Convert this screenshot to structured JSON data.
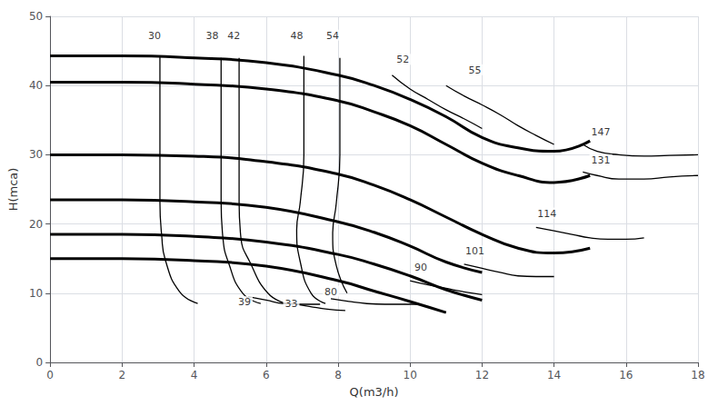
{
  "chart_data": {
    "type": "line",
    "xlabel": "Q(m3/h)",
    "ylabel": "H(mca)",
    "xlim": [
      0,
      18
    ],
    "ylim": [
      0,
      50
    ],
    "xticks": [
      0,
      2,
      4,
      6,
      8,
      10,
      12,
      14,
      16,
      18
    ],
    "yticks": [
      0,
      10,
      20,
      30,
      40,
      50
    ],
    "grid": true,
    "color": "#000000",
    "series": [
      {
        "line_style": "bold",
        "x": [
          0,
          2,
          4,
          6,
          8,
          9,
          10,
          11,
          12,
          13,
          14,
          15
        ],
        "values": [
          44.3,
          44.3,
          44.0,
          43.3,
          41.5,
          40.0,
          38.0,
          35.5,
          32.5,
          31.0,
          30.5,
          32.0
        ]
      },
      {
        "line_style": "bold",
        "x": [
          0,
          2,
          4,
          6,
          8,
          9,
          10,
          11,
          12,
          13,
          14,
          15
        ],
        "values": [
          40.5,
          40.5,
          40.2,
          39.5,
          37.8,
          36.2,
          34.2,
          31.5,
          28.8,
          27.0,
          26.0,
          27.0
        ]
      },
      {
        "line_style": "bold",
        "x": [
          0,
          2,
          4,
          6,
          8,
          9,
          10,
          11,
          12,
          13,
          14,
          15
        ],
        "values": [
          30.0,
          30.0,
          29.8,
          29.0,
          27.2,
          25.6,
          23.5,
          21.0,
          18.5,
          16.5,
          15.8,
          16.5
        ]
      },
      {
        "line_style": "bold",
        "x": [
          0,
          2,
          4,
          6,
          8,
          9,
          10,
          11,
          12
        ],
        "values": [
          23.5,
          23.5,
          23.2,
          22.4,
          20.3,
          18.8,
          16.8,
          14.5,
          13.0
        ]
      },
      {
        "line_style": "bold",
        "x": [
          0,
          2,
          4,
          6,
          8,
          9,
          10,
          11,
          12
        ],
        "values": [
          18.5,
          18.5,
          18.2,
          17.4,
          15.6,
          14.2,
          12.5,
          10.5,
          9.0
        ]
      },
      {
        "line_style": "bold",
        "x": [
          0,
          2,
          4,
          6,
          8,
          9,
          10,
          11
        ],
        "values": [
          15.0,
          15.0,
          14.7,
          13.9,
          11.8,
          10.3,
          8.8,
          7.2
        ]
      },
      {
        "line_style": "thin",
        "x": [
          3.05,
          3.05,
          3.05,
          3.05,
          3.1,
          3.2,
          3.6,
          4.1
        ],
        "values": [
          44.3,
          40.0,
          29.8,
          23.2,
          18.3,
          14.8,
          10.2,
          8.5
        ]
      },
      {
        "line_style": "thin",
        "x": [
          4.75,
          4.75,
          4.75,
          4.8,
          4.95,
          5.35,
          5.85
        ],
        "values": [
          44.0,
          29.8,
          23.2,
          18.0,
          14.5,
          10.0,
          8.5
        ]
      },
      {
        "line_style": "thin",
        "x": [
          5.25,
          5.25,
          5.25,
          5.3,
          5.55,
          6.05,
          6.55
        ],
        "values": [
          44.0,
          29.8,
          23.2,
          18.0,
          14.5,
          10.0,
          8.5
        ]
      },
      {
        "line_style": "thin",
        "x": [
          7.05,
          7.05,
          6.95,
          6.85,
          6.95,
          7.25,
          7.65
        ],
        "values": [
          44.3,
          30.0,
          23.2,
          19.2,
          14.5,
          10.0,
          8.5
        ]
      },
      {
        "line_style": "thin",
        "x": [
          8.05,
          8.05,
          7.95,
          7.85,
          7.95,
          8.25
        ],
        "values": [
          44.0,
          30.0,
          23.0,
          18.5,
          14.0,
          10.0
        ]
      },
      {
        "line_style": "thin",
        "x": [
          9.5,
          10.0,
          10.5,
          11.0,
          11.5,
          12.0
        ],
        "values": [
          41.5,
          39.5,
          38.0,
          36.5,
          35.2,
          33.8
        ]
      },
      {
        "line_style": "thin",
        "x": [
          11.0,
          11.5,
          12.0,
          12.5,
          13.0,
          13.5,
          14.0
        ],
        "values": [
          40.0,
          38.5,
          37.2,
          35.8,
          34.2,
          32.8,
          31.5
        ]
      },
      {
        "line_style": "thin",
        "x": [
          14.8,
          15.2,
          15.8,
          16.5,
          17.2,
          18.0
        ],
        "values": [
          31.5,
          30.5,
          30.0,
          29.8,
          29.9,
          30.0
        ]
      },
      {
        "line_style": "thin",
        "x": [
          14.8,
          15.2,
          15.8,
          16.5,
          17.2,
          18.0
        ],
        "values": [
          27.5,
          27.0,
          26.5,
          26.5,
          26.8,
          27.0
        ]
      },
      {
        "line_style": "thin",
        "x": [
          13.5,
          14.0,
          14.5,
          15.0,
          15.5,
          16.0,
          16.5
        ],
        "values": [
          19.5,
          19.0,
          18.5,
          18.0,
          17.8,
          17.8,
          18.0
        ]
      },
      {
        "line_style": "thin",
        "x": [
          11.5,
          12.0,
          12.5,
          13.0,
          13.5,
          14.0
        ],
        "values": [
          14.2,
          13.6,
          13.0,
          12.5,
          12.4,
          12.4
        ]
      },
      {
        "line_style": "thin",
        "x": [
          10.0,
          10.5,
          11.0,
          11.5,
          12.0
        ],
        "values": [
          11.8,
          11.2,
          10.7,
          10.2,
          9.8
        ]
      },
      {
        "line_style": "thin",
        "x": [
          7.8,
          8.3,
          8.8,
          9.3,
          9.8,
          10.3
        ],
        "values": [
          9.2,
          8.8,
          8.5,
          8.4,
          8.4,
          8.4
        ]
      },
      {
        "line_style": "thin",
        "x": [
          5.5,
          6.0,
          6.5,
          7.0,
          7.5
        ],
        "values": [
          9.5,
          9.0,
          8.5,
          8.4,
          8.4
        ]
      },
      {
        "line_style": "thin",
        "x": [
          6.7,
          7.2,
          7.7,
          8.2
        ],
        "values": [
          8.5,
          8.1,
          7.7,
          7.5
        ]
      }
    ],
    "annotations": [
      {
        "text": "30",
        "x": 2.9,
        "y": 46.5
      },
      {
        "text": "38",
        "x": 4.5,
        "y": 46.5
      },
      {
        "text": "42",
        "x": 5.1,
        "y": 46.5
      },
      {
        "text": "48",
        "x": 6.85,
        "y": 46.5
      },
      {
        "text": "54",
        "x": 7.85,
        "y": 46.5
      },
      {
        "text": "52",
        "x": 9.8,
        "y": 43.0
      },
      {
        "text": "55",
        "x": 11.8,
        "y": 41.5
      },
      {
        "text": "147",
        "x": 15.3,
        "y": 32.5
      },
      {
        "text": "131",
        "x": 15.3,
        "y": 28.5
      },
      {
        "text": "114",
        "x": 13.8,
        "y": 20.8
      },
      {
        "text": "101",
        "x": 11.8,
        "y": 15.3
      },
      {
        "text": "90",
        "x": 10.3,
        "y": 13.0
      },
      {
        "text": "80",
        "x": 7.8,
        "y": 9.5
      },
      {
        "text": "39",
        "x": 5.4,
        "y": 8.0
      },
      {
        "text": "33",
        "x": 6.7,
        "y": 7.8
      }
    ]
  }
}
